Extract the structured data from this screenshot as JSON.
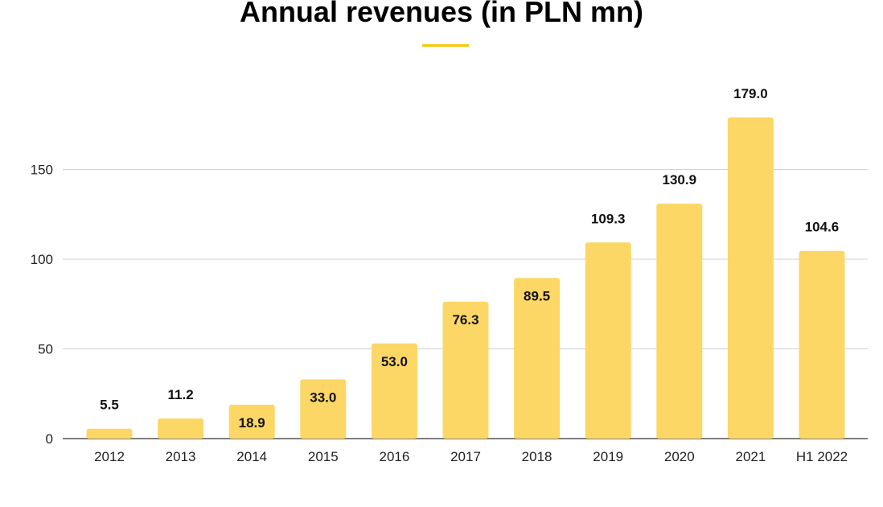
{
  "chart_data": {
    "type": "bar",
    "title": "Annual revenues (in PLN mn)",
    "categories": [
      "2012",
      "2013",
      "2014",
      "2015",
      "2016",
      "2017",
      "2018",
      "2019",
      "2020",
      "2021",
      "H1 2022"
    ],
    "values": [
      5.5,
      11.2,
      18.9,
      33.0,
      53.0,
      76.3,
      89.5,
      109.3,
      130.9,
      179.0,
      104.6
    ],
    "data_labels": [
      "5.5",
      "11.2",
      "18.9",
      "33.0",
      "53.0",
      "76.3",
      "89.5",
      "109.3",
      "130.9",
      "179.0",
      "104.6"
    ],
    "y_ticks": [
      0,
      50,
      100,
      150
    ],
    "ylim": [
      0,
      200
    ],
    "grid": true,
    "bar_color": "#fcd766",
    "accent_color": "#f7c600"
  }
}
